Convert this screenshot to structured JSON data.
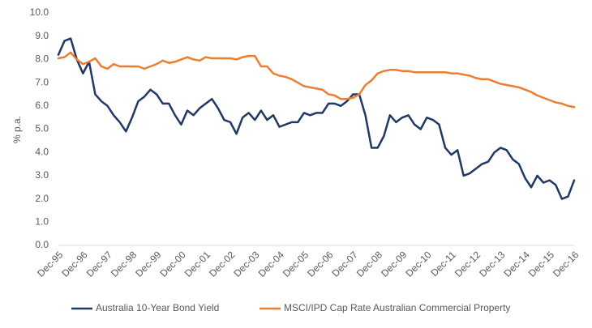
{
  "chart_data": {
    "type": "line",
    "y_label": "% p.a.",
    "categories": [
      "Dec-95",
      null,
      null,
      null,
      "Dec-96",
      null,
      null,
      null,
      "Dec-97",
      null,
      null,
      null,
      "Dec-98",
      null,
      null,
      null,
      "Dec-99",
      null,
      null,
      null,
      "Dec-00",
      null,
      null,
      null,
      "Dec-01",
      null,
      null,
      null,
      "Dec-02",
      null,
      null,
      null,
      "Dec-03",
      null,
      null,
      null,
      "Dec-04",
      null,
      null,
      null,
      "Dec-05",
      null,
      null,
      null,
      "Dec-06",
      null,
      null,
      null,
      "Dec-07",
      null,
      null,
      null,
      "Dec-08",
      null,
      null,
      null,
      "Dec-09",
      null,
      null,
      null,
      "Dec-10",
      null,
      null,
      null,
      "Dec-11",
      null,
      null,
      null,
      "Dec-12",
      null,
      null,
      null,
      "Dec-13",
      null,
      null,
      null,
      "Dec-14",
      null,
      null,
      null,
      "Dec-15",
      null,
      null,
      null,
      "Dec-16"
    ],
    "series": [
      {
        "name": "Australia 10-Year Bond Yield",
        "color": "#203864",
        "values": [
          8.2,
          8.8,
          8.9,
          8.0,
          7.4,
          7.9,
          6.5,
          6.2,
          6.0,
          5.6,
          5.3,
          4.9,
          5.5,
          6.2,
          6.4,
          6.7,
          6.5,
          6.1,
          6.1,
          5.6,
          5.2,
          5.8,
          5.6,
          5.9,
          6.1,
          6.3,
          5.9,
          5.4,
          5.3,
          4.8,
          5.5,
          5.7,
          5.4,
          5.8,
          5.4,
          5.6,
          5.1,
          5.2,
          5.3,
          5.3,
          5.7,
          5.6,
          5.7,
          5.7,
          6.1,
          6.1,
          6.0,
          6.2,
          6.5,
          6.5,
          5.6,
          4.2,
          4.2,
          4.7,
          5.6,
          5.3,
          5.5,
          5.6,
          5.2,
          5.0,
          5.5,
          5.4,
          5.2,
          4.2,
          3.9,
          4.1,
          3.0,
          3.1,
          3.3,
          3.5,
          3.6,
          4.0,
          4.2,
          4.1,
          3.7,
          3.5,
          2.9,
          2.5,
          3.0,
          2.7,
          2.8,
          2.6,
          2.0,
          2.1,
          2.8
        ]
      },
      {
        "name": "MSCI/IPD Cap Rate Australian Commercial Property",
        "color": "#ed7d31",
        "values": [
          8.05,
          8.1,
          8.3,
          8.0,
          7.8,
          7.9,
          8.05,
          7.7,
          7.6,
          7.8,
          7.7,
          7.7,
          7.7,
          7.7,
          7.6,
          7.7,
          7.8,
          7.95,
          7.85,
          7.9,
          8.0,
          8.1,
          8.0,
          7.95,
          8.1,
          8.05,
          8.05,
          8.05,
          8.05,
          8.0,
          8.1,
          8.15,
          8.15,
          7.7,
          7.7,
          7.4,
          7.3,
          7.25,
          7.15,
          7.0,
          6.85,
          6.8,
          6.75,
          6.7,
          6.5,
          6.45,
          6.3,
          6.3,
          6.35,
          6.5,
          6.9,
          7.1,
          7.4,
          7.5,
          7.55,
          7.55,
          7.5,
          7.5,
          7.45,
          7.45,
          7.45,
          7.45,
          7.45,
          7.45,
          7.4,
          7.4,
          7.35,
          7.3,
          7.2,
          7.15,
          7.15,
          7.05,
          6.95,
          6.9,
          6.85,
          6.8,
          6.7,
          6.6,
          6.45,
          6.35,
          6.25,
          6.15,
          6.1,
          6.0,
          5.95
        ]
      }
    ],
    "ylim": [
      0,
      10
    ],
    "yticks": [
      {
        "value": 0,
        "label": "0.0"
      },
      {
        "value": 1,
        "label": "1.0"
      },
      {
        "value": 2,
        "label": "2.0"
      },
      {
        "value": 3,
        "label": "3.0"
      },
      {
        "value": 4,
        "label": "4.0"
      },
      {
        "value": 5,
        "label": "5.0"
      },
      {
        "value": 6,
        "label": "6.0"
      },
      {
        "value": 7,
        "label": "7.0"
      },
      {
        "value": 8,
        "label": "8.0"
      },
      {
        "value": 9,
        "label": "9.0"
      },
      {
        "value": 10,
        "label": "10.0"
      }
    ],
    "grid": false,
    "legend": "bottom"
  }
}
